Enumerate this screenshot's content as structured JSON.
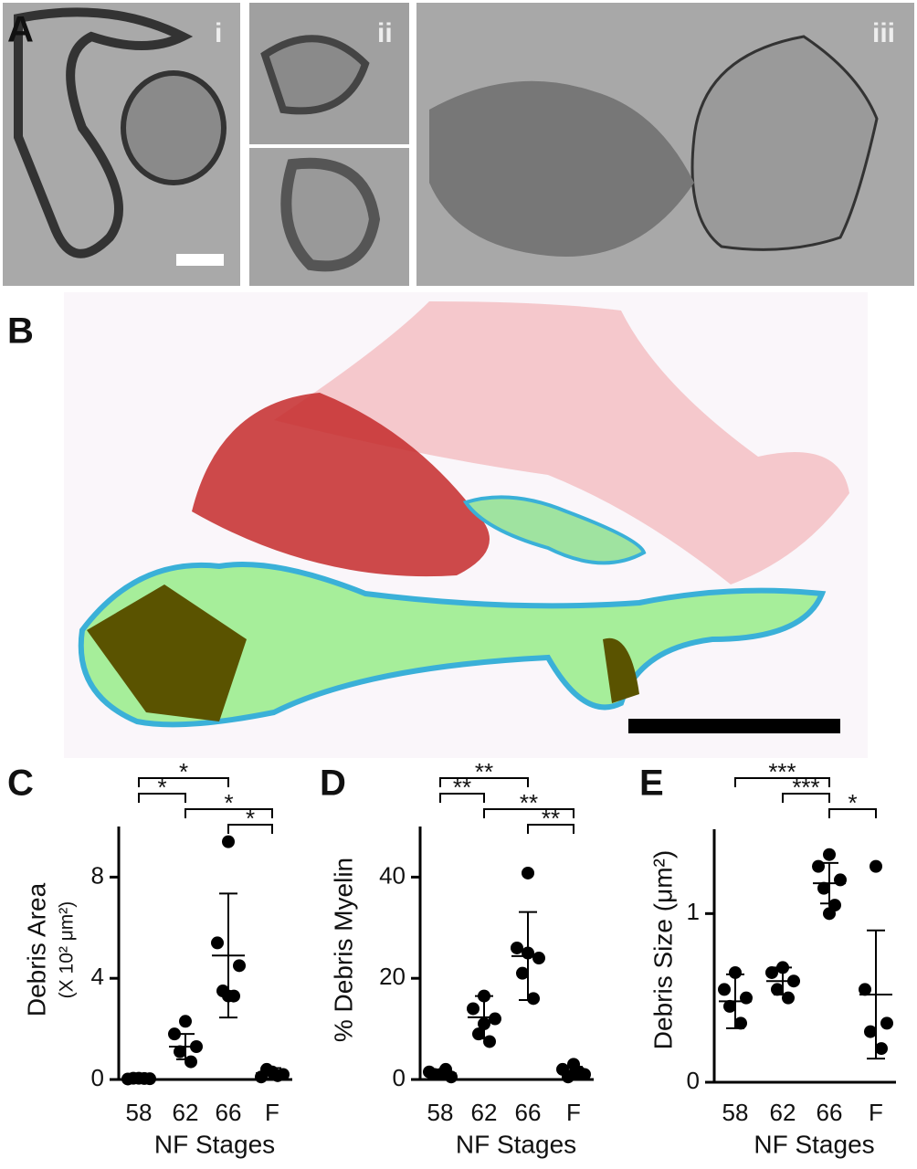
{
  "panels": {
    "a": "A",
    "b": "B",
    "c": "C",
    "d": "D",
    "e": "E",
    "i": "i",
    "ii": "ii",
    "iii": "iii"
  },
  "chart_data": [
    {
      "type": "dot",
      "ylabel": "Debris Area",
      "yunit": "(X 10² μm²)",
      "xlabel": "NF Stages",
      "categories": [
        "58",
        "62",
        "66",
        "F"
      ],
      "values": [
        [
          0.05,
          0.02,
          0.03,
          0.05,
          0.04
        ],
        [
          2.3,
          1.8,
          1.3,
          1.1,
          0.7
        ],
        [
          9.4,
          5.4,
          4.5,
          3.5,
          3.3,
          3.3
        ],
        [
          0.3,
          0.1,
          0.2,
          0.4,
          0.15
        ]
      ],
      "means": [
        0.04,
        1.3,
        4.9,
        0.25
      ],
      "sds": [
        0.02,
        0.5,
        2.45,
        0.2
      ],
      "ylim": [
        0,
        10
      ],
      "yticks": [
        0,
        4,
        8
      ],
      "brackets": [
        {
          "from": "58",
          "to": "66",
          "label": "*"
        },
        {
          "from": "58",
          "to": "62",
          "label": "*"
        },
        {
          "from": "62",
          "to": "F",
          "label": "*"
        },
        {
          "from": "66",
          "to": "F",
          "label": "*"
        }
      ]
    },
    {
      "type": "dot",
      "ylabel": "% Debris Myelin",
      "xlabel": "NF Stages",
      "categories": [
        "58",
        "62",
        "66",
        "F"
      ],
      "values": [
        [
          1,
          1.5,
          0.5,
          1,
          2
        ],
        [
          16.5,
          14,
          12,
          9,
          7.5,
          11
        ],
        [
          40.8,
          26,
          24,
          21,
          16,
          25
        ],
        [
          3,
          2,
          1,
          0.5,
          1.5,
          1
        ]
      ],
      "means": [
        1.2,
        12.3,
        24.4,
        1.5
      ],
      "sds": [
        0.6,
        4.2,
        8.7,
        1
      ],
      "ylim": [
        0,
        50
      ],
      "yticks": [
        0,
        20,
        40
      ],
      "brackets": [
        {
          "from": "58",
          "to": "66",
          "label": "**"
        },
        {
          "from": "58",
          "to": "62",
          "label": "**"
        },
        {
          "from": "62",
          "to": "F",
          "label": "**"
        },
        {
          "from": "66",
          "to": "F",
          "label": "**"
        }
      ]
    },
    {
      "type": "dot",
      "ylabel": "Debris Size (μm²)",
      "xlabel": "NF Stages",
      "categories": [
        "58",
        "62",
        "66",
        "F"
      ],
      "values": [
        [
          0.65,
          0.55,
          0.5,
          0.45,
          0.35
        ],
        [
          0.68,
          0.65,
          0.6,
          0.55,
          0.5
        ],
        [
          1.35,
          1.28,
          1.2,
          1.15,
          1.05,
          1.0
        ],
        [
          1.28,
          0.55,
          0.35,
          0.3,
          0.2
        ]
      ],
      "means": [
        0.48,
        0.6,
        1.18,
        0.52
      ],
      "sds": [
        0.16,
        0.08,
        0.12,
        0.38
      ],
      "ylim": [
        0,
        1.5
      ],
      "yticks": [
        0,
        1
      ],
      "brackets": [
        {
          "from": "58",
          "to": "66",
          "label": "***"
        },
        {
          "from": "62",
          "to": "66",
          "label": "***"
        },
        {
          "from": "66",
          "to": "F",
          "label": "*"
        }
      ]
    }
  ]
}
